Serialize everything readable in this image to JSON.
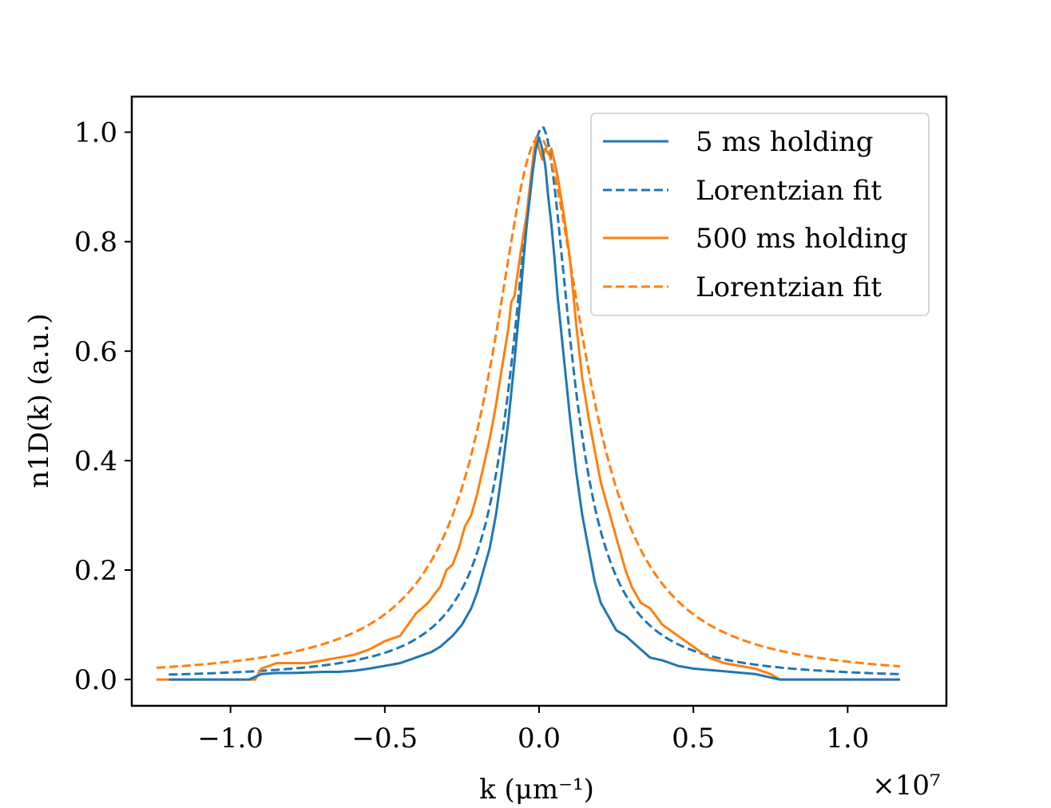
{
  "chart_data": {
    "type": "line",
    "xlabel": "k (μm⁻¹)",
    "ylabel": "n1D(k) (a.u.)",
    "x_offset_text": "×10⁷",
    "xlim": [
      -1.32,
      1.32
    ],
    "ylim": [
      -0.048,
      1.065
    ],
    "x_ticks": [
      {
        "value": -1.0,
        "label": "−1.0"
      },
      {
        "value": -0.5,
        "label": "−0.5"
      },
      {
        "value": 0.0,
        "label": "0.0"
      },
      {
        "value": 0.5,
        "label": "0.5"
      },
      {
        "value": 1.0,
        "label": "1.0"
      }
    ],
    "y_ticks": [
      {
        "value": 0.0,
        "label": "0.0"
      },
      {
        "value": 0.2,
        "label": "0.2"
      },
      {
        "value": 0.4,
        "label": "0.4"
      },
      {
        "value": 0.6,
        "label": "0.6"
      },
      {
        "value": 0.8,
        "label": "0.8"
      },
      {
        "value": 1.0,
        "label": "1.0"
      }
    ],
    "legend_position": "top-right",
    "series": [
      {
        "name": "5 ms holding",
        "color": "#1f77b4",
        "style": "solid",
        "x": [
          -1.2,
          -1.0,
          -0.94,
          -0.9,
          -0.85,
          -0.8,
          -0.75,
          -0.7,
          -0.65,
          -0.6,
          -0.55,
          -0.5,
          -0.45,
          -0.4,
          -0.35,
          -0.32,
          -0.28,
          -0.25,
          -0.22,
          -0.2,
          -0.18,
          -0.16,
          -0.14,
          -0.12,
          -0.1,
          -0.08,
          -0.06,
          -0.05,
          -0.04,
          -0.03,
          -0.02,
          -0.01,
          0.0,
          0.01,
          0.02,
          0.03,
          0.04,
          0.05,
          0.06,
          0.08,
          0.1,
          0.12,
          0.14,
          0.16,
          0.18,
          0.2,
          0.22,
          0.25,
          0.28,
          0.32,
          0.36,
          0.4,
          0.45,
          0.5,
          0.6,
          0.7,
          0.78,
          0.85,
          0.95,
          1.05,
          1.17
        ],
        "y": [
          0.0,
          0.0,
          0.0,
          0.01,
          0.012,
          0.012,
          0.013,
          0.014,
          0.014,
          0.016,
          0.02,
          0.025,
          0.03,
          0.04,
          0.05,
          0.06,
          0.08,
          0.1,
          0.13,
          0.16,
          0.2,
          0.24,
          0.3,
          0.38,
          0.47,
          0.58,
          0.7,
          0.77,
          0.83,
          0.88,
          0.93,
          0.97,
          0.99,
          0.97,
          0.94,
          0.88,
          0.83,
          0.77,
          0.7,
          0.59,
          0.48,
          0.38,
          0.3,
          0.24,
          0.18,
          0.14,
          0.12,
          0.09,
          0.08,
          0.06,
          0.04,
          0.035,
          0.025,
          0.02,
          0.015,
          0.01,
          0.0,
          0.0,
          0.0,
          0.0,
          0.0
        ]
      },
      {
        "name": "Lorentzian fit",
        "color": "#1f77b4",
        "style": "dashed",
        "fit": {
          "amplitude": 1.01,
          "center": 0.01,
          "hwhm": 0.115
        },
        "x_range": [
          -1.2,
          1.17
        ]
      },
      {
        "name": "500 ms holding",
        "color": "#ff7f0e",
        "style": "solid",
        "x": [
          -1.24,
          -1.0,
          -0.92,
          -0.9,
          -0.85,
          -0.8,
          -0.75,
          -0.7,
          -0.65,
          -0.6,
          -0.55,
          -0.5,
          -0.45,
          -0.4,
          -0.36,
          -0.32,
          -0.3,
          -0.28,
          -0.26,
          -0.24,
          -0.22,
          -0.2,
          -0.18,
          -0.16,
          -0.14,
          -0.12,
          -0.1,
          -0.09,
          -0.08,
          -0.06,
          -0.04,
          -0.03,
          -0.02,
          -0.01,
          0.0,
          0.01,
          0.02,
          0.03,
          0.04,
          0.06,
          0.08,
          0.1,
          0.12,
          0.14,
          0.16,
          0.18,
          0.2,
          0.22,
          0.25,
          0.28,
          0.3,
          0.33,
          0.36,
          0.4,
          0.45,
          0.5,
          0.55,
          0.6,
          0.65,
          0.7,
          0.75,
          0.78,
          0.85,
          0.95,
          1.05,
          1.17
        ],
        "y": [
          0.0,
          0.0,
          0.0,
          0.02,
          0.03,
          0.03,
          0.03,
          0.035,
          0.04,
          0.045,
          0.055,
          0.07,
          0.08,
          0.12,
          0.14,
          0.17,
          0.2,
          0.21,
          0.24,
          0.28,
          0.3,
          0.34,
          0.39,
          0.44,
          0.5,
          0.57,
          0.64,
          0.69,
          0.7,
          0.78,
          0.85,
          0.9,
          0.95,
          0.99,
          0.97,
          0.95,
          0.97,
          0.96,
          0.97,
          0.92,
          0.85,
          0.77,
          0.65,
          0.55,
          0.48,
          0.42,
          0.36,
          0.32,
          0.26,
          0.2,
          0.17,
          0.14,
          0.13,
          0.1,
          0.08,
          0.06,
          0.04,
          0.03,
          0.025,
          0.02,
          0.01,
          0.0,
          0.0,
          0.0,
          0.0,
          0.0
        ]
      },
      {
        "name": "Lorentzian fit",
        "color": "#ff7f0e",
        "style": "dashed",
        "fit": {
          "amplitude": 0.99,
          "center": 0.0,
          "hwhm": 0.185
        },
        "x_range": [
          -1.24,
          1.17
        ]
      }
    ]
  }
}
